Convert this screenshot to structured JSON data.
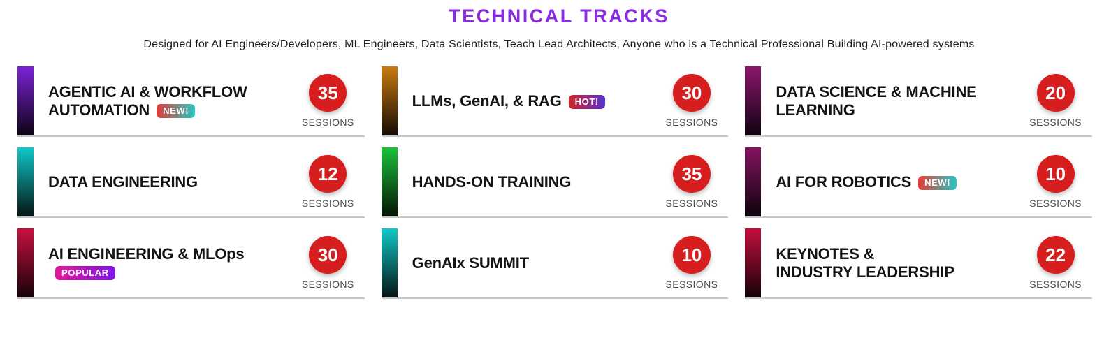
{
  "header": {
    "title": "TECHNICAL TRACKS",
    "subtitle": "Designed for AI Engineers/Developers, ML Engineers, Data Scientists, Teach Lead Architects, Anyone who is a Technical Professional Building AI-powered systems"
  },
  "colors": {
    "title_purple": "#8b2be2",
    "session_circle_red": "#d71e1e",
    "card_border_gray": "#c6c6c6"
  },
  "sessions_label": "SESSIONS",
  "tracks": [
    {
      "title": "AGENTIC AI & WORKFLOW\nAUTOMATION",
      "badge": {
        "label": "NEW!",
        "gradient": [
          "#e23b35",
          "#27c7c2"
        ]
      },
      "sessions": "35",
      "bar_gradient": [
        "#7b22d8",
        "#0d0313"
      ]
    },
    {
      "title": "LLMs, GenAI, & RAG",
      "badge": {
        "label": "HOT!",
        "gradient": [
          "#cf2626",
          "#5633cf"
        ]
      },
      "sessions": "30",
      "bar_gradient": [
        "#c97a10",
        "#160b02"
      ]
    },
    {
      "title": "DATA SCIENCE & MACHINE\nLEARNING",
      "badge": null,
      "sessions": "20",
      "bar_gradient": [
        "#8c166d",
        "#100210"
      ]
    },
    {
      "title": "DATA ENGINEERING",
      "badge": null,
      "sessions": "12",
      "bar_gradient": [
        "#10c8c8",
        "#051414"
      ]
    },
    {
      "title": "HANDS-ON TRAINING",
      "badge": null,
      "sessions": "35",
      "bar_gradient": [
        "#1bc23a",
        "#041404"
      ]
    },
    {
      "title": "AI FOR ROBOTICS",
      "badge": {
        "label": "NEW!",
        "gradient": [
          "#e23b35",
          "#27c7c2"
        ]
      },
      "sessions": "10",
      "bar_gradient": [
        "#82145f",
        "#0e020c"
      ]
    },
    {
      "title": "AI ENGINEERING & MLOps",
      "badge": {
        "label": "POPULAR",
        "gradient": [
          "#e31895",
          "#7e16e8"
        ]
      },
      "sessions": "30",
      "bar_gradient": [
        "#c81040",
        "#140208"
      ]
    },
    {
      "title": "GenAIx SUMMIT",
      "badge": null,
      "sessions": "10",
      "bar_gradient": [
        "#10c8c8",
        "#051414"
      ]
    },
    {
      "title": "KEYNOTES &\nINDUSTRY LEADERSHIP",
      "badge": null,
      "sessions": "22",
      "bar_gradient": [
        "#c30f3e",
        "#140208"
      ]
    }
  ]
}
